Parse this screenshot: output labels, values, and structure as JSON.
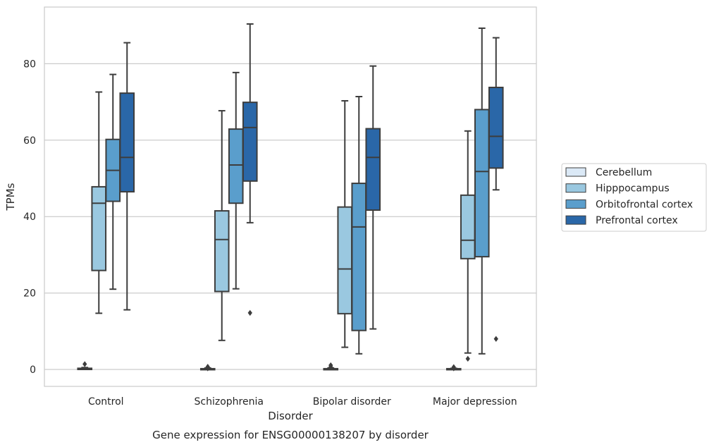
{
  "chart_data": {
    "type": "box",
    "title": "Gene expression for ENSG00000138207 by disorder",
    "xlabel": "Disorder",
    "ylabel": "TPMs",
    "ylim": [
      -4.5,
      95
    ],
    "yticks": [
      0,
      20,
      40,
      60,
      80
    ],
    "grid": "horizontal",
    "legend_position": "right",
    "categories": [
      "Control",
      "Schizophrenia",
      "Bipolar disorder",
      "Major depression"
    ],
    "series": [
      {
        "name": "Cerebellum",
        "color": "#dbe9f6",
        "boxes": [
          {
            "whisker_low": 0.0,
            "q1": 0.0,
            "median": 0.1,
            "q3": 0.3,
            "whisker_high": 0.5,
            "outliers": [
              1.4
            ]
          },
          {
            "whisker_low": 0.0,
            "q1": 0.0,
            "median": 0.1,
            "q3": 0.2,
            "whisker_high": 0.4,
            "outliers": [
              0.7,
              0.3
            ]
          },
          {
            "whisker_low": 0.0,
            "q1": 0.0,
            "median": 0.1,
            "q3": 0.2,
            "whisker_high": 0.4,
            "outliers": [
              1.1,
              0.7
            ]
          },
          {
            "whisker_low": 0.0,
            "q1": 0.0,
            "median": 0.1,
            "q3": 0.2,
            "whisker_high": 0.3,
            "outliers": [
              0.6,
              0.3
            ]
          }
        ]
      },
      {
        "name": "Hipppocampus",
        "color": "#9ac8e0",
        "boxes": [
          {
            "whisker_low": 14.7,
            "q1": 25.9,
            "median": 43.5,
            "q3": 47.8,
            "whisker_high": 72.6,
            "outliers": []
          },
          {
            "whisker_low": 7.6,
            "q1": 20.4,
            "median": 34.0,
            "q3": 41.5,
            "whisker_high": 67.7,
            "outliers": []
          },
          {
            "whisker_low": 5.8,
            "q1": 14.6,
            "median": 26.3,
            "q3": 42.5,
            "whisker_high": 70.3,
            "outliers": []
          },
          {
            "whisker_low": 4.3,
            "q1": 29.0,
            "median": 33.8,
            "q3": 45.6,
            "whisker_high": 62.4,
            "outliers": [
              2.8
            ]
          }
        ]
      },
      {
        "name": "Orbitofrontal cortex",
        "color": "#5a9ecc",
        "boxes": [
          {
            "whisker_low": 21.0,
            "q1": 44.0,
            "median": 52.1,
            "q3": 60.2,
            "whisker_high": 77.2,
            "outliers": []
          },
          {
            "whisker_low": 21.1,
            "q1": 43.5,
            "median": 53.5,
            "q3": 62.9,
            "whisker_high": 77.7,
            "outliers": []
          },
          {
            "whisker_low": 4.1,
            "q1": 10.2,
            "median": 37.3,
            "q3": 48.7,
            "whisker_high": 71.4,
            "outliers": []
          },
          {
            "whisker_low": 4.1,
            "q1": 29.5,
            "median": 51.8,
            "q3": 68.0,
            "whisker_high": 89.3,
            "outliers": []
          }
        ]
      },
      {
        "name": "Prefrontal cortex",
        "color": "#2a67a8",
        "boxes": [
          {
            "whisker_low": 15.6,
            "q1": 46.5,
            "median": 55.5,
            "q3": 72.3,
            "whisker_high": 85.5,
            "outliers": []
          },
          {
            "whisker_low": 38.4,
            "q1": 49.3,
            "median": 63.3,
            "q3": 69.9,
            "whisker_high": 90.4,
            "outliers": [
              14.8
            ]
          },
          {
            "whisker_low": 10.6,
            "q1": 41.7,
            "median": 55.5,
            "q3": 63.0,
            "whisker_high": 79.4,
            "outliers": []
          },
          {
            "whisker_low": 47.0,
            "q1": 52.7,
            "median": 61.0,
            "q3": 73.8,
            "whisker_high": 86.8,
            "outliers": [
              8.0
            ]
          }
        ]
      }
    ]
  }
}
